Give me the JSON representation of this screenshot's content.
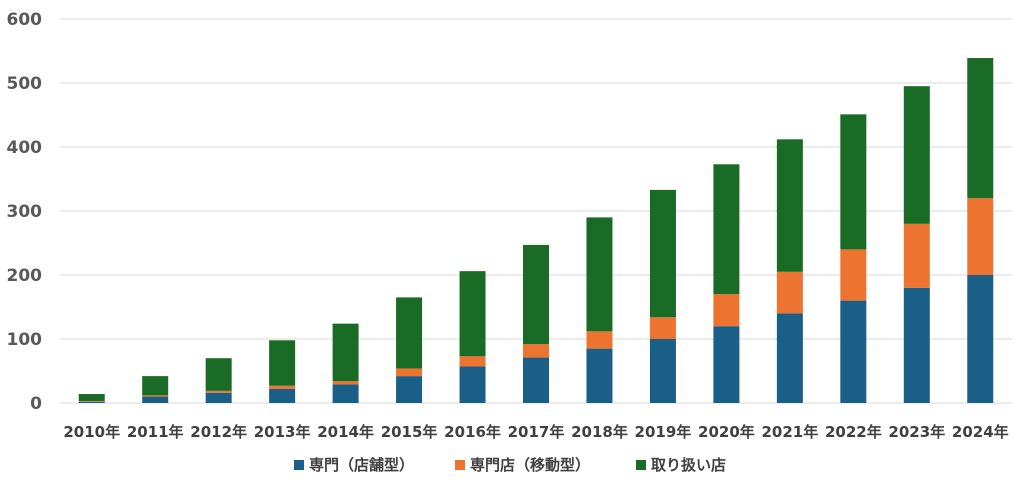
{
  "chart_data": {
    "type": "bar",
    "stacked": true,
    "categories": [
      "2010年",
      "2011年",
      "2012年",
      "2013年",
      "2014年",
      "2015年",
      "2016年",
      "2017年",
      "2018年",
      "2019年",
      "2020年",
      "2021年",
      "2022年",
      "2023年",
      "2024年"
    ],
    "series": [
      {
        "name": "専門（店舗型）",
        "color": "#1a5f87",
        "values": [
          2,
          10,
          16,
          22,
          29,
          42,
          57,
          71,
          85,
          100,
          120,
          140,
          160,
          180,
          200
        ]
      },
      {
        "name": "専門店（移動型）",
        "color": "#ed7331",
        "values": [
          1,
          2,
          3,
          5,
          5,
          12,
          16,
          21,
          27,
          34,
          50,
          65,
          80,
          100,
          120
        ]
      },
      {
        "name": "取り扱い店",
        "color": "#1a6b25",
        "values": [
          11,
          30,
          51,
          71,
          90,
          111,
          133,
          155,
          178,
          199,
          203,
          207,
          211,
          215,
          219
        ]
      }
    ],
    "ylim": [
      0,
      600
    ],
    "yticks": [
      0,
      100,
      200,
      300,
      400,
      500,
      600
    ],
    "grid": true,
    "legend": "bottom",
    "title": "",
    "xlabel": "",
    "ylabel": ""
  }
}
